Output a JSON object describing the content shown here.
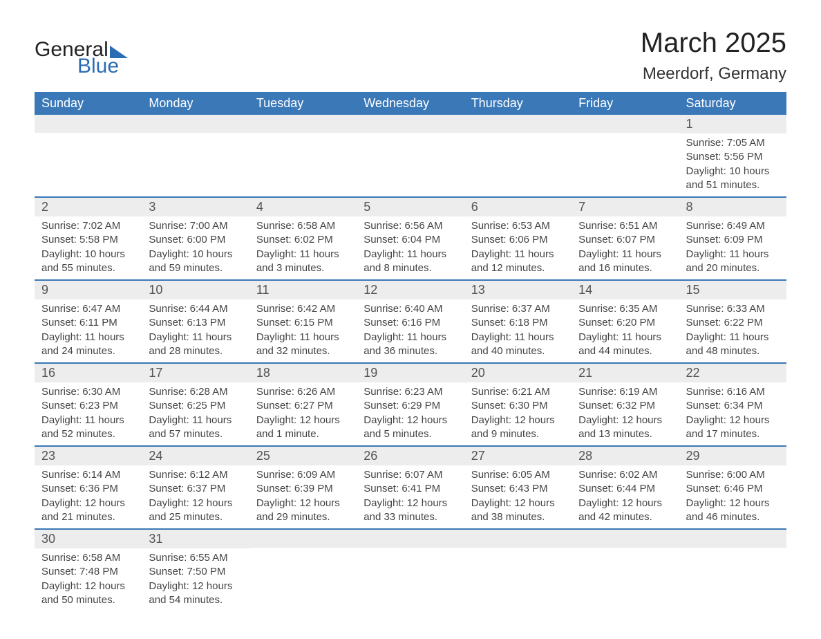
{
  "logo": {
    "text1": "General",
    "text2": "Blue",
    "tri_color": "#2a6db5"
  },
  "title": "March 2025",
  "location": "Meerdorf, Germany",
  "colors": {
    "header_bg": "#3a78b8",
    "header_text": "#ffffff",
    "daynum_bg": "#ededed",
    "row_divider": "#3a78b8",
    "text": "#444444",
    "logo_blue": "#2a6db5"
  },
  "weekdays": [
    "Sunday",
    "Monday",
    "Tuesday",
    "Wednesday",
    "Thursday",
    "Friday",
    "Saturday"
  ],
  "sunrise_label": "Sunrise: ",
  "sunset_label": "Sunset: ",
  "daylight_label": "Daylight: ",
  "weeks": [
    [
      null,
      null,
      null,
      null,
      null,
      null,
      {
        "n": "1",
        "sr": "7:05 AM",
        "ss": "5:56 PM",
        "dl": "10 hours and 51 minutes."
      }
    ],
    [
      {
        "n": "2",
        "sr": "7:02 AM",
        "ss": "5:58 PM",
        "dl": "10 hours and 55 minutes."
      },
      {
        "n": "3",
        "sr": "7:00 AM",
        "ss": "6:00 PM",
        "dl": "10 hours and 59 minutes."
      },
      {
        "n": "4",
        "sr": "6:58 AM",
        "ss": "6:02 PM",
        "dl": "11 hours and 3 minutes."
      },
      {
        "n": "5",
        "sr": "6:56 AM",
        "ss": "6:04 PM",
        "dl": "11 hours and 8 minutes."
      },
      {
        "n": "6",
        "sr": "6:53 AM",
        "ss": "6:06 PM",
        "dl": "11 hours and 12 minutes."
      },
      {
        "n": "7",
        "sr": "6:51 AM",
        "ss": "6:07 PM",
        "dl": "11 hours and 16 minutes."
      },
      {
        "n": "8",
        "sr": "6:49 AM",
        "ss": "6:09 PM",
        "dl": "11 hours and 20 minutes."
      }
    ],
    [
      {
        "n": "9",
        "sr": "6:47 AM",
        "ss": "6:11 PM",
        "dl": "11 hours and 24 minutes."
      },
      {
        "n": "10",
        "sr": "6:44 AM",
        "ss": "6:13 PM",
        "dl": "11 hours and 28 minutes."
      },
      {
        "n": "11",
        "sr": "6:42 AM",
        "ss": "6:15 PM",
        "dl": "11 hours and 32 minutes."
      },
      {
        "n": "12",
        "sr": "6:40 AM",
        "ss": "6:16 PM",
        "dl": "11 hours and 36 minutes."
      },
      {
        "n": "13",
        "sr": "6:37 AM",
        "ss": "6:18 PM",
        "dl": "11 hours and 40 minutes."
      },
      {
        "n": "14",
        "sr": "6:35 AM",
        "ss": "6:20 PM",
        "dl": "11 hours and 44 minutes."
      },
      {
        "n": "15",
        "sr": "6:33 AM",
        "ss": "6:22 PM",
        "dl": "11 hours and 48 minutes."
      }
    ],
    [
      {
        "n": "16",
        "sr": "6:30 AM",
        "ss": "6:23 PM",
        "dl": "11 hours and 52 minutes."
      },
      {
        "n": "17",
        "sr": "6:28 AM",
        "ss": "6:25 PM",
        "dl": "11 hours and 57 minutes."
      },
      {
        "n": "18",
        "sr": "6:26 AM",
        "ss": "6:27 PM",
        "dl": "12 hours and 1 minute."
      },
      {
        "n": "19",
        "sr": "6:23 AM",
        "ss": "6:29 PM",
        "dl": "12 hours and 5 minutes."
      },
      {
        "n": "20",
        "sr": "6:21 AM",
        "ss": "6:30 PM",
        "dl": "12 hours and 9 minutes."
      },
      {
        "n": "21",
        "sr": "6:19 AM",
        "ss": "6:32 PM",
        "dl": "12 hours and 13 minutes."
      },
      {
        "n": "22",
        "sr": "6:16 AM",
        "ss": "6:34 PM",
        "dl": "12 hours and 17 minutes."
      }
    ],
    [
      {
        "n": "23",
        "sr": "6:14 AM",
        "ss": "6:36 PM",
        "dl": "12 hours and 21 minutes."
      },
      {
        "n": "24",
        "sr": "6:12 AM",
        "ss": "6:37 PM",
        "dl": "12 hours and 25 minutes."
      },
      {
        "n": "25",
        "sr": "6:09 AM",
        "ss": "6:39 PM",
        "dl": "12 hours and 29 minutes."
      },
      {
        "n": "26",
        "sr": "6:07 AM",
        "ss": "6:41 PM",
        "dl": "12 hours and 33 minutes."
      },
      {
        "n": "27",
        "sr": "6:05 AM",
        "ss": "6:43 PM",
        "dl": "12 hours and 38 minutes."
      },
      {
        "n": "28",
        "sr": "6:02 AM",
        "ss": "6:44 PM",
        "dl": "12 hours and 42 minutes."
      },
      {
        "n": "29",
        "sr": "6:00 AM",
        "ss": "6:46 PM",
        "dl": "12 hours and 46 minutes."
      }
    ],
    [
      {
        "n": "30",
        "sr": "6:58 AM",
        "ss": "7:48 PM",
        "dl": "12 hours and 50 minutes."
      },
      {
        "n": "31",
        "sr": "6:55 AM",
        "ss": "7:50 PM",
        "dl": "12 hours and 54 minutes."
      },
      null,
      null,
      null,
      null,
      null
    ]
  ]
}
